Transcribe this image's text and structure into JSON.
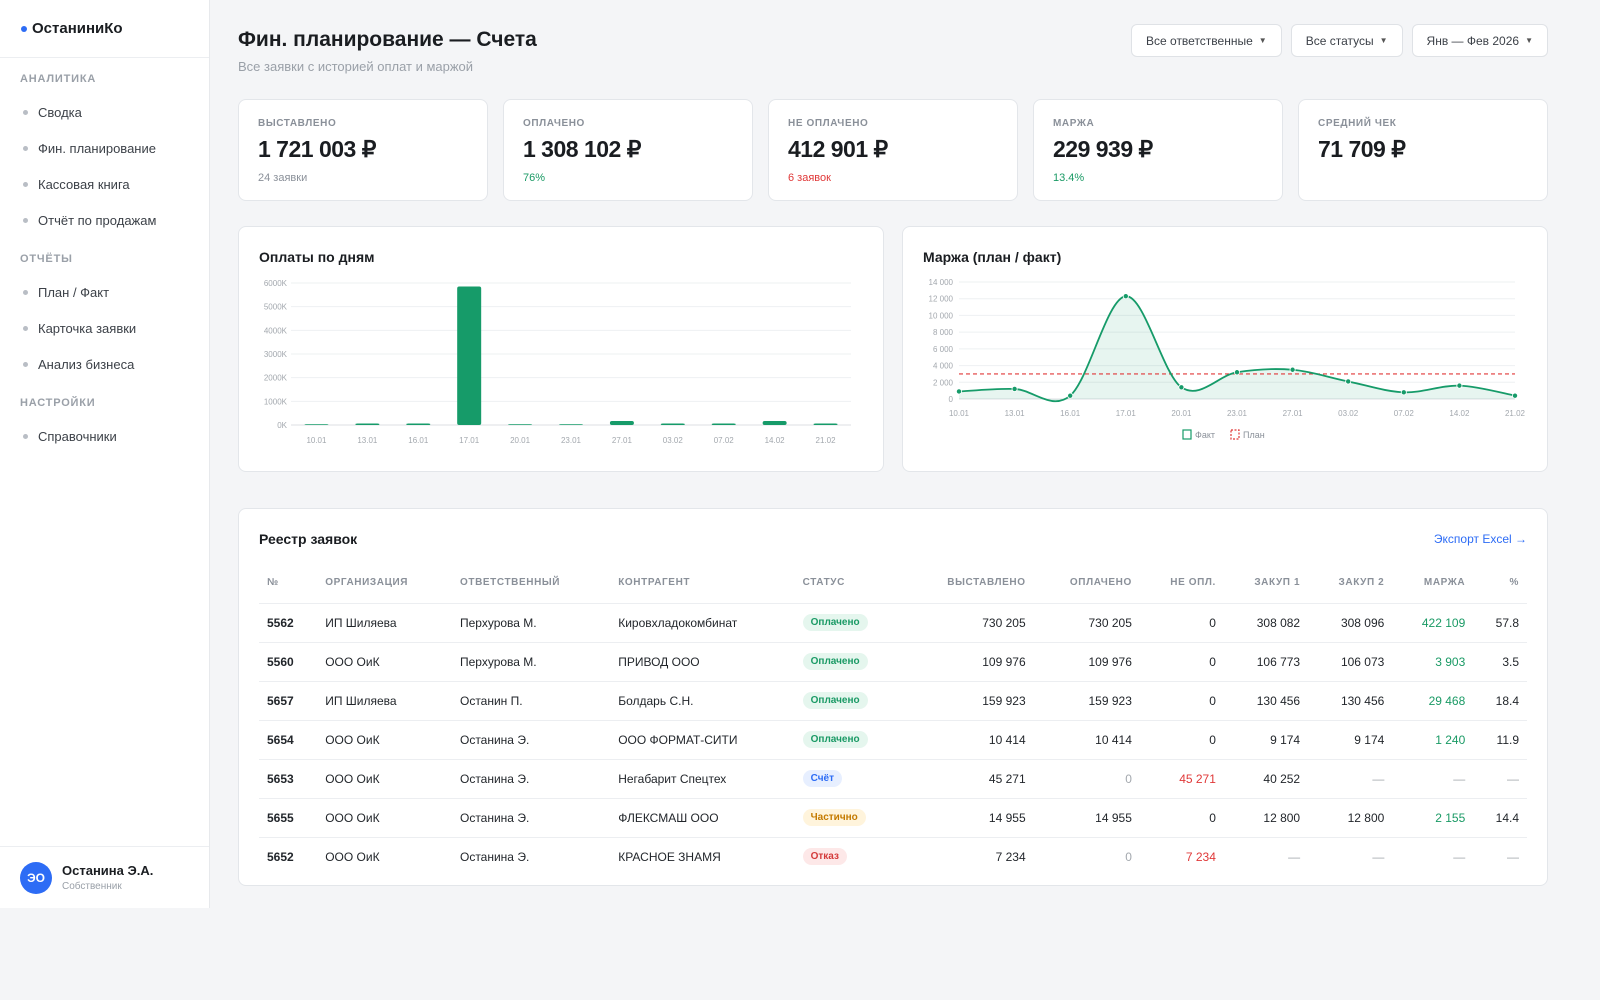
{
  "sidebar": {
    "brand": "ОстаниниКо",
    "sections": [
      {
        "title": "Аналитика",
        "items": [
          "Сводка",
          "Фин. планирование",
          "Кассовая книга",
          "Отчёт по продажам"
        ]
      },
      {
        "title": "Отчёты",
        "items": [
          "План / Факт",
          "Карточка заявки",
          "Анализ бизнеса"
        ]
      },
      {
        "title": "Настройки",
        "items": [
          "Справочники"
        ]
      }
    ],
    "user": {
      "initials": "ЭО",
      "name": "Останина Э.А.",
      "role": "Собственник"
    }
  },
  "header": {
    "title": "Фин. планирование — Счета",
    "subtitle": "Все заявки с историей оплат и маржой",
    "filters": [
      "Все ответственные",
      "Все статусы",
      "Янв — Фев 2026"
    ]
  },
  "kpis": [
    {
      "label": "Выставлено",
      "value": "1 721 003 ₽",
      "sub": "24 заявки",
      "tone": "muted"
    },
    {
      "label": "Оплачено",
      "value": "1 308 102 ₽",
      "sub": "76%",
      "tone": "green"
    },
    {
      "label": "Не оплачено",
      "value": "412 901 ₽",
      "sub": "6 заявок",
      "tone": "red"
    },
    {
      "label": "Маржа",
      "value": "229 939 ₽",
      "sub": "13.4%",
      "tone": "green"
    },
    {
      "label": "Средний чек",
      "value": "71 709 ₽",
      "sub": "",
      "tone": "muted"
    }
  ],
  "chart_data": [
    {
      "type": "bar",
      "title": "Оплаты по дням",
      "ytick_labels": [
        "0K",
        "1000K",
        "2000K",
        "3000K",
        "4000K",
        "5000K",
        "6000K"
      ],
      "ylim": [
        0,
        6000000
      ],
      "x_labels": [
        "10.01",
        "13.01",
        "16.01",
        "17.01",
        "20.01",
        "23.01",
        "27.01",
        "03.02",
        "07.02",
        "14.02",
        "21.02"
      ],
      "values": [
        0,
        50000,
        20000,
        5850000,
        0,
        0,
        170000,
        40000,
        10000,
        170000,
        15000
      ],
      "color": "#169b69"
    },
    {
      "type": "line",
      "title": "Маржа (план / факт)",
      "ytick_labels": [
        "0",
        "2 000",
        "4 000",
        "6 000",
        "8 000",
        "10 000",
        "12 000",
        "14 000"
      ],
      "ylim": [
        0,
        14000
      ],
      "x_labels": [
        "10.01",
        "13.01",
        "16.01",
        "17.01",
        "20.01",
        "23.01",
        "27.01",
        "03.02",
        "07.02",
        "14.02",
        "21.02"
      ],
      "series": [
        {
          "name": "Факт",
          "values": [
            900,
            1200,
            400,
            12300,
            1400,
            3200,
            3500,
            2100,
            800,
            1600,
            400
          ]
        },
        {
          "name": "План",
          "values": [
            3000,
            3000,
            3000,
            3000,
            3000,
            3000,
            3000,
            3000,
            3000,
            3000,
            3000
          ]
        }
      ],
      "colors": {
        "fact": "#169b69",
        "plan": "#e03838"
      }
    }
  ],
  "table": {
    "title": "Реестр заявок",
    "export_label": "Экспорт Excel →",
    "columns": [
      "№",
      "Организация",
      "Ответственный",
      "Контрагент",
      "Статус",
      "Выставлено",
      "Оплачено",
      "Не опл.",
      "Закуп 1",
      "Закуп 2",
      "Маржа",
      "%"
    ],
    "rows": [
      [
        "5562",
        "ИП Шиляева",
        "Перхурова М.",
        "Кировхладокомбинат",
        "Оплачено",
        "730 205",
        "730 205",
        "0",
        "308 082",
        "308 096",
        "422 109",
        "57.8"
      ],
      [
        "5560",
        "ООО ОиК",
        "Перхурова М.",
        "ПРИВОД ООО",
        "Оплачено",
        "109 976",
        "109 976",
        "0",
        "106 773",
        "106 073",
        "3 903",
        "3.5"
      ],
      [
        "5657",
        "ИП Шиляева",
        "Останин П.",
        "Болдарь С.Н.",
        "Оплачено",
        "159 923",
        "159 923",
        "0",
        "130 456",
        "130 456",
        "29 468",
        "18.4"
      ],
      [
        "5654",
        "ООО ОиК",
        "Останина Э.",
        "ООО ФОРМАТ-СИТИ",
        "Оплачено",
        "10 414",
        "10 414",
        "0",
        "9 174",
        "9 174",
        "1 240",
        "11.9"
      ],
      [
        "5653",
        "ООО ОиК",
        "Останина Э.",
        "Негабарит Спецтех",
        "Счёт",
        "45 271",
        "0",
        "45 271",
        "40 252",
        "—",
        "—",
        "—"
      ],
      [
        "5655",
        "ООО ОиК",
        "Останина Э.",
        "ФЛЕКСМАШ ООО",
        "Частично",
        "14 955",
        "14 955",
        "0",
        "12 800",
        "12 800",
        "2 155",
        "14.4"
      ],
      [
        "5652",
        "ООО ОиК",
        "Останина Э.",
        "КРАСНОЕ ЗНАМЯ",
        "Отказ",
        "7 234",
        "0",
        "7 234",
        "—",
        "—",
        "—",
        "—"
      ]
    ]
  }
}
